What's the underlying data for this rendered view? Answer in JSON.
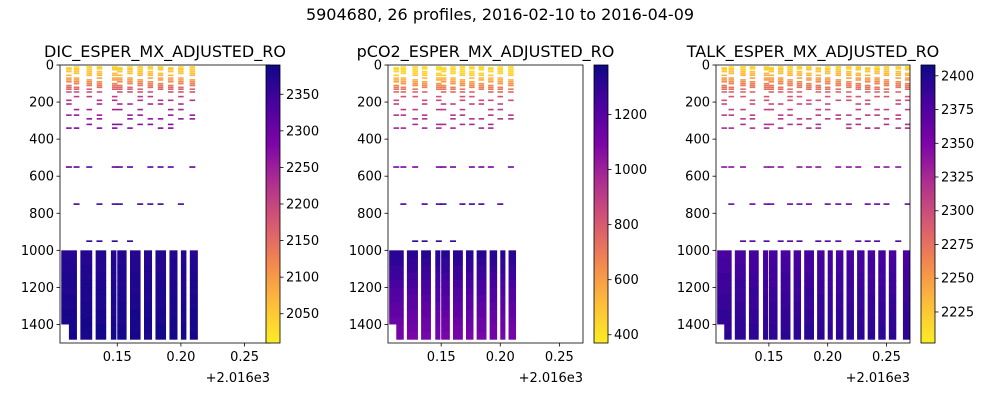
{
  "figure": {
    "suptitle": "5904680, 26 profiles, 2016-02-10 to 2016-04-09",
    "colormap_stops": [
      "#fcec25",
      "#fdbd3b",
      "#f2884f",
      "#d75971",
      "#b0318e",
      "#7d05a8",
      "#4a02a0",
      "#0e0887"
    ]
  },
  "chart_data": [
    {
      "type": "heatmap",
      "title": "DIC_ESPER_MX_ADJUSTED_RO",
      "xlim": [
        0.105,
        0.27
      ],
      "ylim": [
        1500,
        0
      ],
      "x_ticks": [
        0.15,
        0.2,
        0.25
      ],
      "x_tick_labels": [
        "0.15",
        "0.20",
        "0.25"
      ],
      "x_offset_label": "+2.016e3",
      "y_ticks": [
        0,
        200,
        400,
        600,
        800,
        1000,
        1200,
        1400
      ],
      "y_tick_labels": [
        "0",
        "200",
        "400",
        "600",
        "800",
        "1000",
        "1200",
        "1400"
      ],
      "colorbar": {
        "range": [
          2010,
          2390
        ],
        "ticks": [
          2050,
          2100,
          2150,
          2200,
          2250,
          2300,
          2350
        ],
        "tick_labels": [
          "2050",
          "2100",
          "2150",
          "2200",
          "2250",
          "2300",
          "2350"
        ]
      },
      "profile_x": [
        0.112,
        0.118,
        0.128,
        0.136,
        0.148,
        0.152,
        0.16,
        0.168,
        0.176,
        0.184,
        0.192,
        0.2,
        0.209
      ],
      "deep_columns": [
        [
          0.106,
          0.118
        ],
        [
          0.121,
          0.13
        ],
        [
          0.133,
          0.141
        ],
        [
          0.145,
          0.149
        ],
        [
          0.15,
          0.157
        ],
        [
          0.16,
          0.168
        ],
        [
          0.171,
          0.177
        ],
        [
          0.18,
          0.188
        ],
        [
          0.191,
          0.197
        ],
        [
          0.2,
          0.204
        ],
        [
          0.207,
          0.213
        ]
      ],
      "shallow_levels": [
        10,
        15,
        20,
        25,
        35,
        45,
        55,
        70,
        80,
        90,
        100,
        110,
        120,
        130,
        145,
        170,
        190,
        210,
        240,
        270,
        290,
        320,
        340
      ],
      "deep_levels": [
        1000,
        1040,
        1080,
        1120,
        1160,
        1200,
        1240,
        1280,
        1320,
        1360,
        1400,
        1440,
        1480
      ],
      "sparse_rows": [
        [
          550,
          0.11,
          0.21
        ],
        [
          750,
          0.115,
          0.2
        ],
        [
          950,
          0.12,
          0.16
        ]
      ],
      "value_profile": [
        [
          0,
          2030
        ],
        [
          50,
          2065
        ],
        [
          100,
          2125
        ],
        [
          150,
          2190
        ],
        [
          200,
          2235
        ],
        [
          300,
          2265
        ],
        [
          400,
          2290
        ],
        [
          600,
          2325
        ],
        [
          800,
          2355
        ],
        [
          1000,
          2370
        ],
        [
          1500,
          2385
        ]
      ]
    },
    {
      "type": "heatmap",
      "title": "pCO2_ESPER_MX_ADJUSTED_RO",
      "xlim": [
        0.105,
        0.27
      ],
      "ylim": [
        1500,
        0
      ],
      "x_ticks": [
        0.15,
        0.2,
        0.25
      ],
      "x_tick_labels": [
        "0.15",
        "0.20",
        "0.25"
      ],
      "x_offset_label": "+2.016e3",
      "y_ticks": [
        0,
        200,
        400,
        600,
        800,
        1000,
        1200,
        1400
      ],
      "y_tick_labels": [
        "0",
        "200",
        "400",
        "600",
        "800",
        "1000",
        "1200",
        "1400"
      ],
      "colorbar": {
        "range": [
          370,
          1380
        ],
        "ticks": [
          400,
          600,
          800,
          1000,
          1200
        ],
        "tick_labels": [
          "400",
          "600",
          "800",
          "1000",
          "1200"
        ]
      },
      "profile_x": [
        0.112,
        0.118,
        0.128,
        0.136,
        0.148,
        0.152,
        0.16,
        0.168,
        0.176,
        0.184,
        0.192,
        0.2,
        0.209
      ],
      "deep_columns": [
        [
          0.106,
          0.118
        ],
        [
          0.121,
          0.13
        ],
        [
          0.133,
          0.141
        ],
        [
          0.145,
          0.149
        ],
        [
          0.15,
          0.157
        ],
        [
          0.16,
          0.168
        ],
        [
          0.171,
          0.177
        ],
        [
          0.18,
          0.188
        ],
        [
          0.191,
          0.197
        ],
        [
          0.2,
          0.204
        ],
        [
          0.207,
          0.213
        ]
      ],
      "shallow_levels": [
        10,
        15,
        20,
        25,
        35,
        45,
        55,
        70,
        80,
        90,
        100,
        110,
        120,
        130,
        145,
        170,
        190,
        210,
        240,
        270,
        290,
        320,
        340
      ],
      "deep_levels": [
        1000,
        1040,
        1080,
        1120,
        1160,
        1200,
        1240,
        1280,
        1320,
        1360,
        1400,
        1440,
        1480
      ],
      "sparse_rows": [
        [
          550,
          0.11,
          0.21
        ],
        [
          750,
          0.115,
          0.2
        ],
        [
          950,
          0.12,
          0.16
        ]
      ],
      "value_profile": [
        [
          0,
          400
        ],
        [
          50,
          460
        ],
        [
          100,
          620
        ],
        [
          150,
          780
        ],
        [
          200,
          880
        ],
        [
          300,
          960
        ],
        [
          400,
          1010
        ],
        [
          600,
          1150
        ],
        [
          800,
          1290
        ],
        [
          1000,
          1320
        ],
        [
          1500,
          1080
        ]
      ]
    },
    {
      "type": "heatmap",
      "title": "TALK_ESPER_MX_ADJUSTED_RO",
      "xlim": [
        0.105,
        0.27
      ],
      "ylim": [
        1500,
        0
      ],
      "x_ticks": [
        0.15,
        0.2,
        0.25
      ],
      "x_tick_labels": [
        "0.15",
        "0.20",
        "0.25"
      ],
      "x_offset_label": "+2.016e3",
      "y_ticks": [
        0,
        200,
        400,
        600,
        800,
        1000,
        1200,
        1400
      ],
      "y_tick_labels": [
        "0",
        "200",
        "400",
        "600",
        "800",
        "1000",
        "1200",
        "1400"
      ],
      "colorbar": {
        "range": [
          2202,
          2408
        ],
        "ticks": [
          2225,
          2250,
          2275,
          2300,
          2325,
          2350,
          2375,
          2400
        ],
        "tick_labels": [
          "2225",
          "2250",
          "2275",
          "2300",
          "2325",
          "2350",
          "2375",
          "2400"
        ]
      },
      "profile_x": [
        0.112,
        0.118,
        0.128,
        0.136,
        0.148,
        0.152,
        0.16,
        0.168,
        0.176,
        0.184,
        0.192,
        0.2,
        0.209,
        0.218,
        0.226,
        0.234,
        0.242,
        0.25,
        0.26,
        0.268
      ],
      "deep_columns": [
        [
          0.106,
          0.118
        ],
        [
          0.121,
          0.13
        ],
        [
          0.133,
          0.141
        ],
        [
          0.145,
          0.149
        ],
        [
          0.15,
          0.157
        ],
        [
          0.16,
          0.168
        ],
        [
          0.171,
          0.177
        ],
        [
          0.18,
          0.188
        ],
        [
          0.191,
          0.197
        ],
        [
          0.2,
          0.204
        ],
        [
          0.207,
          0.213
        ],
        [
          0.216,
          0.222
        ],
        [
          0.225,
          0.231
        ],
        [
          0.234,
          0.24
        ],
        [
          0.243,
          0.249
        ],
        [
          0.252,
          0.258
        ],
        [
          0.264,
          0.27
        ]
      ],
      "shallow_levels": [
        10,
        15,
        20,
        25,
        35,
        45,
        55,
        70,
        80,
        90,
        100,
        110,
        120,
        130,
        145,
        170,
        190,
        210,
        240,
        270,
        290,
        320,
        340
      ],
      "deep_levels": [
        1000,
        1040,
        1080,
        1120,
        1160,
        1200,
        1240,
        1280,
        1320,
        1360,
        1400,
        1440,
        1480
      ],
      "sparse_rows": [
        [
          550,
          0.11,
          0.27
        ],
        [
          750,
          0.115,
          0.27
        ],
        [
          950,
          0.12,
          0.26
        ]
      ],
      "value_profile": [
        [
          0,
          2210
        ],
        [
          50,
          2235
        ],
        [
          100,
          2265
        ],
        [
          150,
          2285
        ],
        [
          200,
          2300
        ],
        [
          300,
          2318
        ],
        [
          400,
          2330
        ],
        [
          600,
          2345
        ],
        [
          800,
          2365
        ],
        [
          1000,
          2380
        ],
        [
          1500,
          2395
        ]
      ]
    }
  ]
}
